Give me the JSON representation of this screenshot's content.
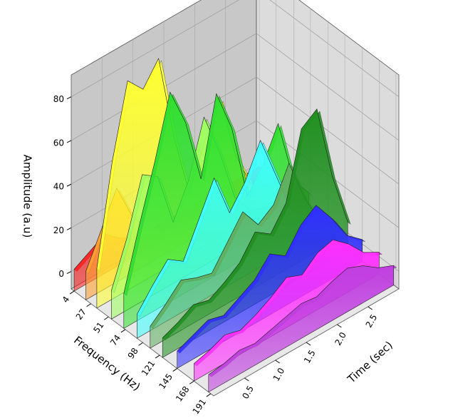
{
  "chart_data": {
    "type": "waterfall3d",
    "x_label": "Frequency (Hz)",
    "y_label": "Time (sec)",
    "z_label": "Amplitude (a.u)",
    "xlim": [
      0,
      195
    ],
    "xticks": [
      4,
      27,
      51,
      74,
      98,
      121,
      145,
      168,
      191
    ],
    "ylim": [
      0,
      3
    ],
    "yticks": [
      0.5,
      {
        "value": 1,
        "label": "1.0"
      },
      1.5,
      {
        "value": 2,
        "label": "2.0"
      },
      2.5
    ],
    "zlim": [
      -8,
      90
    ],
    "zticks": [
      0,
      20,
      40,
      60,
      80
    ],
    "grid": true,
    "times": [
      0,
      0.25,
      0.5,
      0.75,
      1,
      1.25,
      1.5,
      1.75,
      2,
      2.25,
      2.5,
      2.75,
      3
    ],
    "series": [
      {
        "frequency": 4,
        "color": "#ff2020",
        "values": [
          2,
          6,
          10,
          4,
          1,
          0,
          0,
          0,
          0,
          0,
          0,
          0,
          0
        ]
      },
      {
        "frequency": 20,
        "color": "#ffa030",
        "values": [
          5,
          20,
          35,
          18,
          8,
          3,
          1,
          0,
          0,
          0,
          0,
          0,
          0
        ]
      },
      {
        "frequency": 35,
        "color": "#ffff30",
        "values": [
          10,
          55,
          88,
          80,
          90,
          50,
          20,
          40,
          55,
          25,
          8,
          3,
          1
        ]
      },
      {
        "frequency": 55,
        "color": "#a0ff60",
        "values": [
          5,
          25,
          50,
          45,
          20,
          35,
          60,
          40,
          15,
          5,
          2,
          1,
          0
        ]
      },
      {
        "frequency": 72,
        "color": "#30e030",
        "values": [
          8,
          35,
          60,
          88,
          70,
          40,
          75,
          55,
          20,
          30,
          45,
          15,
          5
        ]
      },
      {
        "frequency": 90,
        "color": "#40ffff",
        "values": [
          3,
          12,
          20,
          15,
          30,
          45,
          25,
          35,
          50,
          30,
          10,
          3,
          1
        ]
      },
      {
        "frequency": 108,
        "color": "#60b060",
        "values": [
          2,
          8,
          15,
          12,
          10,
          20,
          30,
          20,
          25,
          40,
          20,
          5,
          1
        ]
      },
      {
        "frequency": 125,
        "color": "#209020",
        "values": [
          1,
          4,
          8,
          6,
          10,
          15,
          25,
          20,
          30,
          60,
          65,
          30,
          5
        ]
      },
      {
        "frequency": 145,
        "color": "#3030ff",
        "values": [
          0,
          3,
          6,
          4,
          8,
          12,
          20,
          15,
          25,
          30,
          20,
          8,
          2
        ]
      },
      {
        "frequency": 168,
        "color": "#ff30ff",
        "values": [
          0,
          2,
          5,
          3,
          6,
          10,
          15,
          12,
          18,
          20,
          14,
          6,
          2
        ]
      },
      {
        "frequency": 188,
        "color": "#c040e0",
        "values": [
          0,
          1,
          3,
          2,
          4,
          6,
          8,
          7,
          10,
          12,
          9,
          4,
          1
        ]
      }
    ]
  }
}
